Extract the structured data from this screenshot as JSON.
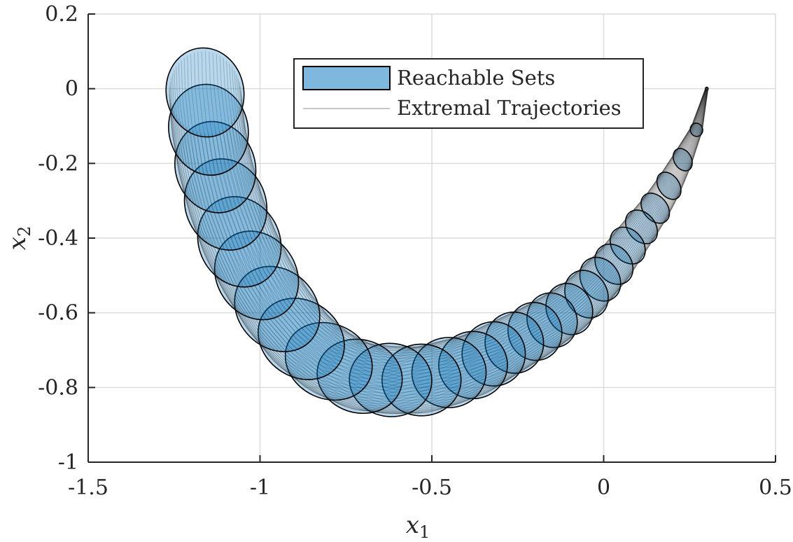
{
  "chart_data": {
    "type": "area",
    "title": "",
    "xlabel": "x",
    "xlabel_subscript": "1",
    "ylabel": "x",
    "ylabel_subscript": "2",
    "xlim": [
      -1.5,
      0.5
    ],
    "ylim": [
      -1.0,
      0.2
    ],
    "grid": true,
    "legend_placement": "top-center",
    "xticks": [
      {
        "value": -1.5,
        "label": "-1.5"
      },
      {
        "value": -1.0,
        "label": "-1"
      },
      {
        "value": -0.5,
        "label": "-0.5"
      },
      {
        "value": 0.0,
        "label": "0"
      },
      {
        "value": 0.5,
        "label": "0.5"
      }
    ],
    "yticks": [
      {
        "value": 0.2,
        "label": "0.2"
      },
      {
        "value": 0.0,
        "label": "0"
      },
      {
        "value": -0.2,
        "label": "-0.2"
      },
      {
        "value": -0.4,
        "label": "-0.4"
      },
      {
        "value": -0.6,
        "label": "-0.6"
      },
      {
        "value": -0.8,
        "label": "-0.8"
      },
      {
        "value": -1.0,
        "label": "-1"
      }
    ],
    "legend": [
      {
        "name": "Reachable Sets",
        "kind": "patch",
        "color": "#0072BD"
      },
      {
        "name": "Extremal Trajectories",
        "kind": "line",
        "color": "#c8c8c8"
      }
    ],
    "colors": {
      "fill": "#0072BD",
      "edge": "#000000",
      "grid": "#dcdcdc",
      "axis": "#262626"
    },
    "reachable_sets": [
      {
        "center": [
          0.3,
          0.0
        ],
        "rx": 0.004,
        "ry": 0.004,
        "angle": 0
      },
      {
        "center": [
          0.27,
          -0.11
        ],
        "rx": 0.018,
        "ry": 0.018,
        "angle": 20
      },
      {
        "center": [
          0.23,
          -0.19
        ],
        "rx": 0.025,
        "ry": 0.032,
        "angle": 30
      },
      {
        "center": [
          0.19,
          -0.26
        ],
        "rx": 0.03,
        "ry": 0.04,
        "angle": 35
      },
      {
        "center": [
          0.15,
          -0.32
        ],
        "rx": 0.035,
        "ry": 0.045,
        "angle": 40
      },
      {
        "center": [
          0.11,
          -0.37
        ],
        "rx": 0.04,
        "ry": 0.05,
        "angle": 40
      },
      {
        "center": [
          0.07,
          -0.42
        ],
        "rx": 0.045,
        "ry": 0.054,
        "angle": 40
      },
      {
        "center": [
          0.03,
          -0.47
        ],
        "rx": 0.05,
        "ry": 0.058,
        "angle": 38
      },
      {
        "center": [
          -0.01,
          -0.51
        ],
        "rx": 0.055,
        "ry": 0.062,
        "angle": 35
      },
      {
        "center": [
          -0.05,
          -0.55
        ],
        "rx": 0.06,
        "ry": 0.066,
        "angle": 30
      },
      {
        "center": [
          -0.1,
          -0.59
        ],
        "rx": 0.066,
        "ry": 0.07,
        "angle": 25
      },
      {
        "center": [
          -0.15,
          -0.62
        ],
        "rx": 0.072,
        "ry": 0.074,
        "angle": 20
      },
      {
        "center": [
          -0.2,
          -0.65
        ],
        "rx": 0.078,
        "ry": 0.078,
        "angle": 15
      },
      {
        "center": [
          -0.26,
          -0.68
        ],
        "rx": 0.085,
        "ry": 0.082,
        "angle": 10
      },
      {
        "center": [
          -0.32,
          -0.71
        ],
        "rx": 0.092,
        "ry": 0.086,
        "angle": 5
      },
      {
        "center": [
          -0.38,
          -0.74
        ],
        "rx": 0.1,
        "ry": 0.09,
        "angle": 0
      },
      {
        "center": [
          -0.45,
          -0.76
        ],
        "rx": 0.108,
        "ry": 0.094,
        "angle": 0
      },
      {
        "center": [
          -0.53,
          -0.78
        ],
        "rx": 0.115,
        "ry": 0.096,
        "angle": 0
      },
      {
        "center": [
          -0.62,
          -0.78
        ],
        "rx": 0.12,
        "ry": 0.098,
        "angle": -5
      },
      {
        "center": [
          -0.71,
          -0.77
        ],
        "rx": 0.125,
        "ry": 0.098,
        "angle": -15
      },
      {
        "center": [
          -0.8,
          -0.73
        ],
        "rx": 0.13,
        "ry": 0.1,
        "angle": -25
      },
      {
        "center": [
          -0.88,
          -0.67
        ],
        "rx": 0.132,
        "ry": 0.102,
        "angle": -35
      },
      {
        "center": [
          -0.95,
          -0.59
        ],
        "rx": 0.134,
        "ry": 0.104,
        "angle": -45
      },
      {
        "center": [
          -1.01,
          -0.5
        ],
        "rx": 0.135,
        "ry": 0.106,
        "angle": -55
      },
      {
        "center": [
          -1.06,
          -0.41
        ],
        "rx": 0.135,
        "ry": 0.108,
        "angle": -62
      },
      {
        "center": [
          -1.1,
          -0.31
        ],
        "rx": 0.135,
        "ry": 0.108,
        "angle": -68
      },
      {
        "center": [
          -1.13,
          -0.21
        ],
        "rx": 0.134,
        "ry": 0.107,
        "angle": -73
      },
      {
        "center": [
          -1.15,
          -0.11
        ],
        "rx": 0.133,
        "ry": 0.106,
        "angle": -77
      },
      {
        "center": [
          -1.16,
          -0.01
        ],
        "rx": 0.13,
        "ry": 0.104,
        "angle": -80
      }
    ],
    "trajectory_samples": 60
  }
}
